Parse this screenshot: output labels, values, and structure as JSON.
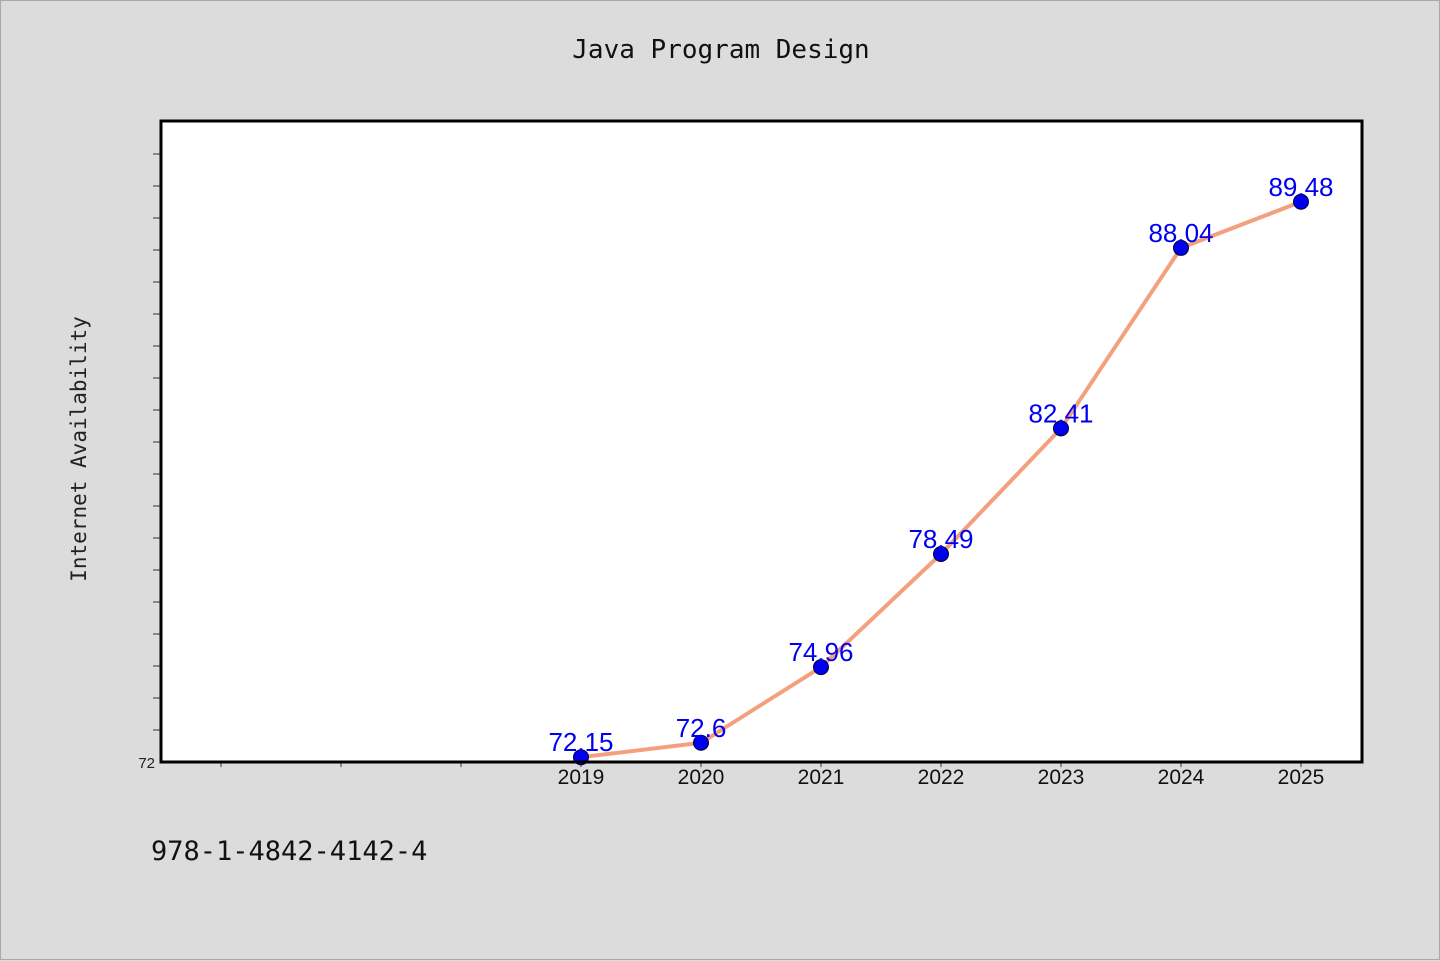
{
  "chart_title": "Java Program Design",
  "footer_text": "978-1-4842-4142-4",
  "colors": {
    "background": "#dcdcdc",
    "plot_background": "#ffffff",
    "line": "#f4a07f",
    "marker": "#0000ee",
    "label": "#0000ee"
  },
  "chart_data": {
    "type": "line",
    "title": "Java Program Design",
    "xlabel": "",
    "ylabel": "Internet Availability",
    "ylim": [
      72,
      92
    ],
    "y_tick_labels": [
      "72"
    ],
    "x_tick_labels": [
      "2019",
      "2020",
      "2021",
      "2022",
      "2023",
      "2024",
      "2025"
    ],
    "x_slots_before_first_label": 3,
    "grid": false,
    "series": [
      {
        "x": [
          "2019",
          "2020",
          "2021",
          "2022",
          "2023",
          "2024",
          "2025"
        ],
        "values": [
          72.15,
          72.6,
          74.96,
          78.49,
          82.41,
          88.04,
          89.48
        ],
        "labels": [
          "72.15",
          "72.6",
          "74.96",
          "78.49",
          "82.41",
          "88.04",
          "89.48"
        ]
      }
    ]
  }
}
